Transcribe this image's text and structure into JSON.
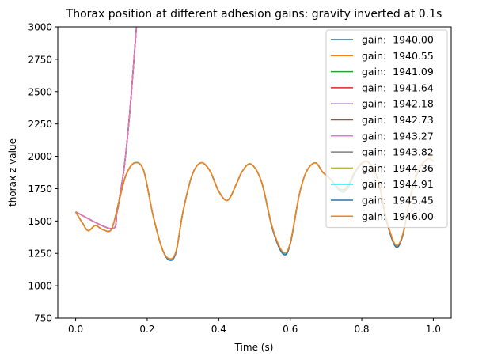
{
  "chart_data": {
    "type": "line",
    "title": "Thorax position at different adhesion gains: gravity inverted at 0.1s",
    "xlabel": "Time (s)",
    "ylabel": "thorax z-value",
    "xlim": [
      -0.05,
      1.05
    ],
    "ylim": [
      750,
      3000
    ],
    "xticks": [
      0.0,
      0.2,
      0.4,
      0.6,
      0.8,
      1.0
    ],
    "xtick_labels": [
      "0.0",
      "0.2",
      "0.4",
      "0.6",
      "0.8",
      "1.0"
    ],
    "yticks": [
      750,
      1000,
      1250,
      1500,
      1750,
      2000,
      2250,
      2500,
      2750,
      3000
    ],
    "ytick_labels": [
      "750",
      "1000",
      "1250",
      "1500",
      "1750",
      "2000",
      "2250",
      "2500",
      "2750",
      "3000"
    ],
    "grid": false,
    "legend_position": "top-right",
    "series": [
      {
        "name": "gain:  1940.00",
        "color": "#1f77b4",
        "behavior": "escape",
        "x": [
          0.0,
          0.1,
          0.115,
          0.125,
          0.135,
          0.145,
          0.155,
          0.163,
          0.17
        ],
        "y": [
          1570,
          1440,
          1560,
          1720,
          1900,
          2150,
          2460,
          2750,
          3000
        ]
      },
      {
        "name": "gain:  1940.55",
        "color": "#ff7f0e",
        "behavior": "escape",
        "x": [
          0.0,
          0.1,
          0.115,
          0.125,
          0.135,
          0.145,
          0.155,
          0.163,
          0.17
        ],
        "y": [
          1570,
          1440,
          1560,
          1720,
          1900,
          2150,
          2460,
          2750,
          3000
        ]
      },
      {
        "name": "gain:  1941.09",
        "color": "#2ca02c",
        "behavior": "escape",
        "x": [
          0.0,
          0.1,
          0.115,
          0.125,
          0.135,
          0.145,
          0.155,
          0.163,
          0.17
        ],
        "y": [
          1570,
          1440,
          1560,
          1720,
          1900,
          2150,
          2460,
          2750,
          3000
        ]
      },
      {
        "name": "gain:  1941.64",
        "color": "#d62728",
        "behavior": "escape",
        "x": [
          0.0,
          0.1,
          0.115,
          0.125,
          0.135,
          0.145,
          0.155,
          0.163,
          0.17
        ],
        "y": [
          1570,
          1440,
          1560,
          1720,
          1900,
          2150,
          2460,
          2750,
          3000
        ]
      },
      {
        "name": "gain:  1942.18",
        "color": "#9467bd",
        "behavior": "escape",
        "x": [
          0.0,
          0.1,
          0.115,
          0.125,
          0.135,
          0.145,
          0.155,
          0.163,
          0.17
        ],
        "y": [
          1570,
          1440,
          1560,
          1720,
          1900,
          2150,
          2460,
          2750,
          3000
        ]
      },
      {
        "name": "gain:  1942.73",
        "color": "#8c564b",
        "behavior": "escape",
        "x": [
          0.0,
          0.1,
          0.115,
          0.125,
          0.135,
          0.145,
          0.155,
          0.163,
          0.17
        ],
        "y": [
          1570,
          1440,
          1560,
          1720,
          1900,
          2150,
          2460,
          2750,
          3000
        ]
      },
      {
        "name": "gain:  1943.27",
        "color": "#e377c2",
        "behavior": "escape",
        "x": [
          0.0,
          0.1,
          0.115,
          0.125,
          0.135,
          0.145,
          0.155,
          0.163,
          0.17
        ],
        "y": [
          1570,
          1440,
          1560,
          1720,
          1900,
          2150,
          2460,
          2750,
          3000
        ]
      },
      {
        "name": "gain:  1943.82",
        "color": "#7f7f7f",
        "behavior": "attached",
        "x": [
          0.0,
          0.02,
          0.035,
          0.055,
          0.075,
          0.1,
          0.12,
          0.14,
          0.165,
          0.19,
          0.215,
          0.24,
          0.26,
          0.28,
          0.3,
          0.325,
          0.35,
          0.375,
          0.4,
          0.425,
          0.45,
          0.465,
          0.49,
          0.52,
          0.55,
          0.58,
          0.6,
          0.625,
          0.645,
          0.67,
          0.69,
          0.71,
          0.74,
          0.76,
          0.785,
          0.815,
          0.845,
          0.87,
          0.895,
          0.915,
          0.935,
          0.96,
          0.985,
          1.0
        ],
        "y": [
          1570,
          1480,
          1425,
          1465,
          1435,
          1435,
          1640,
          1850,
          1950,
          1890,
          1560,
          1300,
          1210,
          1260,
          1570,
          1850,
          1950,
          1890,
          1730,
          1660,
          1790,
          1880,
          1940,
          1800,
          1450,
          1255,
          1330,
          1700,
          1880,
          1950,
          1880,
          1830,
          1740,
          1765,
          1900,
          1960,
          1820,
          1500,
          1310,
          1400,
          1680,
          1900,
          1980,
          1960
        ]
      },
      {
        "name": "gain:  1944.36",
        "color": "#bcbd22",
        "behavior": "attached",
        "x": [
          0.0,
          0.02,
          0.035,
          0.055,
          0.075,
          0.1,
          0.12,
          0.14,
          0.165,
          0.19,
          0.215,
          0.24,
          0.26,
          0.28,
          0.3,
          0.325,
          0.35,
          0.375,
          0.4,
          0.425,
          0.45,
          0.465,
          0.49,
          0.52,
          0.55,
          0.58,
          0.6,
          0.625,
          0.645,
          0.67,
          0.69,
          0.71,
          0.74,
          0.76,
          0.785,
          0.815,
          0.845,
          0.87,
          0.895,
          0.915,
          0.935,
          0.96,
          0.985,
          1.0
        ],
        "y": [
          1570,
          1480,
          1425,
          1465,
          1435,
          1435,
          1640,
          1850,
          1950,
          1890,
          1560,
          1300,
          1210,
          1260,
          1570,
          1850,
          1950,
          1890,
          1730,
          1660,
          1790,
          1880,
          1940,
          1800,
          1450,
          1255,
          1330,
          1700,
          1880,
          1950,
          1880,
          1830,
          1740,
          1765,
          1900,
          1960,
          1820,
          1500,
          1310,
          1400,
          1680,
          1900,
          1980,
          1960
        ]
      },
      {
        "name": "gain:  1944.91",
        "color": "#17becf",
        "behavior": "attached",
        "x": [
          0.0,
          0.02,
          0.035,
          0.055,
          0.075,
          0.1,
          0.12,
          0.14,
          0.165,
          0.19,
          0.215,
          0.24,
          0.26,
          0.28,
          0.3,
          0.325,
          0.35,
          0.375,
          0.4,
          0.425,
          0.45,
          0.465,
          0.49,
          0.52,
          0.55,
          0.58,
          0.6,
          0.625,
          0.645,
          0.67,
          0.69,
          0.71,
          0.74,
          0.76,
          0.785,
          0.815,
          0.845,
          0.87,
          0.895,
          0.915,
          0.935,
          0.96,
          0.985,
          1.0
        ],
        "y": [
          1570,
          1480,
          1425,
          1465,
          1435,
          1435,
          1640,
          1850,
          1950,
          1890,
          1560,
          1300,
          1210,
          1260,
          1570,
          1850,
          1950,
          1890,
          1730,
          1660,
          1790,
          1880,
          1940,
          1800,
          1450,
          1255,
          1330,
          1700,
          1880,
          1950,
          1880,
          1830,
          1730,
          1750,
          1890,
          1960,
          1820,
          1500,
          1310,
          1400,
          1680,
          1900,
          1980,
          1960
        ]
      },
      {
        "name": "gain:  1945.45",
        "color": "#1f77b4",
        "behavior": "attached",
        "x": [
          0.0,
          0.02,
          0.035,
          0.055,
          0.075,
          0.1,
          0.12,
          0.14,
          0.165,
          0.19,
          0.215,
          0.24,
          0.26,
          0.28,
          0.3,
          0.325,
          0.35,
          0.375,
          0.4,
          0.425,
          0.45,
          0.465,
          0.49,
          0.52,
          0.55,
          0.58,
          0.6,
          0.625,
          0.645,
          0.67,
          0.69,
          0.71,
          0.74,
          0.76,
          0.785,
          0.815,
          0.845,
          0.87,
          0.895,
          0.915,
          0.935,
          0.96,
          0.985,
          1.0
        ],
        "y": [
          1570,
          1480,
          1425,
          1465,
          1435,
          1435,
          1640,
          1850,
          1950,
          1890,
          1560,
          1300,
          1200,
          1250,
          1570,
          1850,
          1950,
          1890,
          1730,
          1660,
          1790,
          1880,
          1940,
          1800,
          1440,
          1245,
          1320,
          1700,
          1880,
          1950,
          1880,
          1830,
          1745,
          1770,
          1900,
          1960,
          1820,
          1490,
          1300,
          1390,
          1680,
          1900,
          1980,
          1960
        ]
      },
      {
        "name": "gain:  1946.00",
        "color": "#ff7f0e",
        "behavior": "attached",
        "x": [
          0.0,
          0.02,
          0.035,
          0.055,
          0.075,
          0.1,
          0.12,
          0.14,
          0.165,
          0.19,
          0.215,
          0.24,
          0.26,
          0.28,
          0.3,
          0.325,
          0.35,
          0.375,
          0.4,
          0.425,
          0.45,
          0.465,
          0.49,
          0.52,
          0.55,
          0.58,
          0.6,
          0.625,
          0.645,
          0.67,
          0.69,
          0.71,
          0.74,
          0.76,
          0.785,
          0.815,
          0.845,
          0.87,
          0.895,
          0.915,
          0.935,
          0.96,
          0.985,
          1.0
        ],
        "y": [
          1570,
          1480,
          1425,
          1465,
          1435,
          1435,
          1640,
          1850,
          1950,
          1890,
          1560,
          1300,
          1210,
          1260,
          1570,
          1850,
          1950,
          1890,
          1730,
          1660,
          1790,
          1880,
          1940,
          1800,
          1450,
          1260,
          1330,
          1700,
          1880,
          1950,
          1880,
          1830,
          1745,
          1770,
          1900,
          1960,
          1820,
          1505,
          1315,
          1400,
          1680,
          1900,
          1980,
          1960
        ]
      }
    ]
  }
}
